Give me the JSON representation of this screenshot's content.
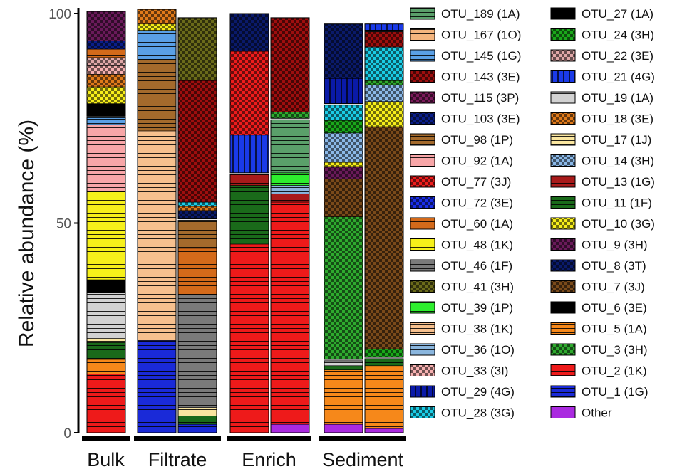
{
  "chart_data": {
    "type": "bar",
    "stacked": true,
    "ylabel": "Relative abundance (%)",
    "ylim": [
      0,
      100
    ],
    "yticks": [
      "0",
      "50",
      "100"
    ],
    "groups": [
      {
        "label": "Bulk",
        "bars": 1
      },
      {
        "label": "Filtrate",
        "bars": 2
      },
      {
        "label": "Enrich",
        "bars": 2
      },
      {
        "label": "Sediment",
        "bars": 2
      }
    ],
    "legend": [
      {
        "name": "OTU_189 (1A)",
        "color": "#5aa06a",
        "pattern": "stripe"
      },
      {
        "name": "OTU_167 (1O)",
        "color": "#f4b57e",
        "pattern": "stripe"
      },
      {
        "name": "OTU_145 (1G)",
        "color": "#5aa0e6",
        "pattern": "stripe"
      },
      {
        "name": "OTU_143 (3E)",
        "color": "#9e0e0e",
        "pattern": "check"
      },
      {
        "name": "OTU_115 (3P)",
        "color": "#7a1a5a",
        "pattern": "check"
      },
      {
        "name": "OTU_103 (3E)",
        "color": "#0a1e8a",
        "pattern": "check"
      },
      {
        "name": "OTU_98 (1P)",
        "color": "#a46a2c",
        "pattern": "stripe"
      },
      {
        "name": "OTU_92 (1A)",
        "color": "#f8a6a8",
        "pattern": "stripe"
      },
      {
        "name": "OTU_77 (3J)",
        "color": "#ee1c1c",
        "pattern": "check"
      },
      {
        "name": "OTU_72 (3E)",
        "color": "#1a2ee8",
        "pattern": "check"
      },
      {
        "name": "OTU_60 (1A)",
        "color": "#d46a1a",
        "pattern": "stripe"
      },
      {
        "name": "OTU_48 (1K)",
        "color": "#f6f01a",
        "pattern": "stripe"
      },
      {
        "name": "OTU_46 (1F)",
        "color": "#7a7a7a",
        "pattern": "stripe"
      },
      {
        "name": "OTU_41 (3H)",
        "color": "#6a6a1a",
        "pattern": "check"
      },
      {
        "name": "OTU_39 (1P)",
        "color": "#2eee2e",
        "pattern": "stripe"
      },
      {
        "name": "OTU_38 (1K)",
        "color": "#f6c08e",
        "pattern": "stripe"
      },
      {
        "name": "OTU_36 (1O)",
        "color": "#8ab6de",
        "pattern": "stripe"
      },
      {
        "name": "OTU_33 (3I)",
        "color": "#f6b0b0",
        "pattern": "check"
      },
      {
        "name": "OTU_29 (4G)",
        "color": "#0a1aa8",
        "pattern": "vstripe"
      },
      {
        "name": "OTU_28 (3G)",
        "color": "#1acce6",
        "pattern": "check"
      },
      {
        "name": "OTU_27 (1A)",
        "color": "#000000",
        "pattern": "solid"
      },
      {
        "name": "OTU_24 (3H)",
        "color": "#1aa81a",
        "pattern": "check"
      },
      {
        "name": "OTU_22 (3E)",
        "color": "#e0a8a8",
        "pattern": "check"
      },
      {
        "name": "OTU_21 (4G)",
        "color": "#1a3ae8",
        "pattern": "vstripe"
      },
      {
        "name": "OTU_19 (1A)",
        "color": "#d2d2d2",
        "pattern": "stripe"
      },
      {
        "name": "OTU_18 (3E)",
        "color": "#e07a1a",
        "pattern": "check"
      },
      {
        "name": "OTU_17 (1J)",
        "color": "#fae6a0",
        "pattern": "stripe"
      },
      {
        "name": "OTU_14 (3H)",
        "color": "#8ab8e8",
        "pattern": "check"
      },
      {
        "name": "OTU_13 (1G)",
        "color": "#a81a1a",
        "pattern": "stripe"
      },
      {
        "name": "OTU_11 (1F)",
        "color": "#1a6a1a",
        "pattern": "stripe"
      },
      {
        "name": "OTU_10 (3G)",
        "color": "#f6ee1a",
        "pattern": "check"
      },
      {
        "name": "OTU_9 (3H)",
        "color": "#6a1a5a",
        "pattern": "check"
      },
      {
        "name": "OTU_8 (3T)",
        "color": "#0a1a6a",
        "pattern": "check"
      },
      {
        "name": "OTU_7 (3J)",
        "color": "#7a4a1a",
        "pattern": "check"
      },
      {
        "name": "OTU_6 (3E)",
        "color": "#000000",
        "pattern": "solid"
      },
      {
        "name": "OTU_5 (1A)",
        "color": "#f6881a",
        "pattern": "stripe"
      },
      {
        "name": "OTU_3 (3H)",
        "color": "#2eaa2e",
        "pattern": "check"
      },
      {
        "name": "OTU_2 (1K)",
        "color": "#ee1a1a",
        "pattern": "stripe"
      },
      {
        "name": "OTU_1 (1G)",
        "color": "#1a2ad8",
        "pattern": "stripe"
      },
      {
        "name": "Other",
        "color": "#aa2ae0",
        "pattern": "solid"
      }
    ],
    "bars": [
      {
        "group": "Bulk",
        "blocks": [
          {
            "segments": [
              [
                "OTU_2 (1K)",
                14
              ],
              [
                "OTU_5 (1A)",
                3.5
              ],
              [
                "OTU_11 (1F)",
                4
              ],
              [
                "OTU_17 (1J)",
                1
              ],
              [
                "OTU_19 (1A)",
                11
              ],
              [
                "OTU_6 (3E)",
                3
              ],
              [
                "OTU_48 (1K)",
                21
              ],
              [
                "OTU_92 (1A)",
                16
              ],
              [
                "OTU_145 (1G)",
                2
              ]
            ]
          },
          {
            "segments": [
              [
                "OTU_27 (1A)",
                3
              ],
              [
                "OTU_10 (3G)",
                4
              ],
              [
                "OTU_18 (3E)",
                3
              ],
              [
                "OTU_33 (3I)",
                2
              ],
              [
                "OTU_22 (3E)",
                2
              ],
              [
                "OTU_60 (1A)",
                2
              ],
              [
                "OTU_103 (3E)",
                2
              ],
              [
                "OTU_9 (3H)",
                7
              ]
            ]
          }
        ]
      },
      {
        "group": "Filtrate",
        "blocks": [
          {
            "segments": [
              [
                "OTU_1 (1G)",
                22
              ],
              [
                "OTU_38 (1K)",
                50
              ],
              [
                "OTU_98 (1P)",
                17
              ],
              [
                "OTU_145 (1G)",
                7
              ],
              [
                "OTU_10 (3G)",
                1.5
              ],
              [
                "OTU_18 (3E)",
                3.5
              ]
            ]
          }
        ]
      },
      {
        "group": "Filtrate",
        "blocks": [
          {
            "segments": [
              [
                "OTU_1 (1G)",
                2
              ],
              [
                "OTU_11 (1F)",
                2
              ],
              [
                "OTU_17 (1J)",
                2
              ],
              [
                "OTU_46 (1F)",
                27
              ],
              [
                "OTU_60 (1A)",
                11
              ],
              [
                "OTU_98 (1P)",
                7
              ]
            ]
          },
          {
            "segments": [
              [
                "OTU_8 (3T)",
                2
              ],
              [
                "OTU_18 (3E)",
                1
              ],
              [
                "OTU_28 (3G)",
                1
              ],
              [
                "OTU_143 (3E)",
                29
              ],
              [
                "OTU_41 (3H)",
                15
              ]
            ]
          }
        ]
      },
      {
        "group": "Enrich",
        "blocks": [
          {
            "segments": [
              [
                "OTU_2 (1K)",
                45
              ],
              [
                "OTU_11 (1F)",
                14
              ],
              [
                "OTU_13 (1G)",
                3
              ]
            ]
          },
          {
            "segments": [
              [
                "OTU_21 (4G)",
                9
              ],
              [
                "OTU_77 (3J)",
                20
              ],
              [
                "OTU_8 (3T)",
                9
              ]
            ]
          }
        ]
      },
      {
        "group": "Enrich",
        "blocks": [
          {
            "segments": [
              [
                "Other",
                2
              ],
              [
                "OTU_2 (1K)",
                53
              ],
              [
                "OTU_13 (1G)",
                2
              ],
              [
                "OTU_36 (1O)",
                2
              ],
              [
                "OTU_39 (1P)",
                3
              ],
              [
                "OTU_189 (1A)",
                13
              ]
            ]
          },
          {
            "segments": [
              [
                "OTU_3 (3H)",
                1.5
              ],
              [
                "OTU_143 (3E)",
                22.5
              ]
            ]
          }
        ]
      },
      {
        "group": "Sediment",
        "blocks": [
          {
            "segments": [
              [
                "Other",
                2
              ],
              [
                "OTU_5 (1A)",
                13
              ],
              [
                "OTU_11 (1F)",
                1
              ],
              [
                "OTU_19 (1A)",
                1.5
              ]
            ]
          },
          {
            "segments": [
              [
                "OTU_3 (3H)",
                34
              ],
              [
                "OTU_7 (3J)",
                9
              ],
              [
                "OTU_9 (3H)",
                3
              ],
              [
                "OTU_10 (3G)",
                1
              ],
              [
                "OTU_14 (3H)",
                7
              ],
              [
                "OTU_24 (3H)",
                3
              ],
              [
                "OTU_28 (3G)",
                4
              ]
            ]
          },
          {
            "segments": [
              [
                "OTU_29 (4G)",
                6
              ],
              [
                "OTU_8 (3T)",
                13
              ]
            ]
          }
        ]
      },
      {
        "group": "Sediment",
        "blocks": [
          {
            "segments": [
              [
                "Other",
                1
              ],
              [
                "OTU_5 (1A)",
                15
              ],
              [
                "OTU_11 (1F)",
                2
              ]
            ]
          },
          {
            "segments": [
              [
                "OTU_24 (3H)",
                2
              ],
              [
                "OTU_7 (3J)",
                53
              ],
              [
                "OTU_10 (3G)",
                6
              ],
              [
                "OTU_14 (3H)",
                4
              ],
              [
                "OTU_3 (3H)",
                1
              ],
              [
                "OTU_28 (3G)",
                8
              ],
              [
                "OTU_143 (3E)",
                4
              ]
            ]
          },
          {
            "segments": [
              [
                "OTU_21 (4G)",
                1.5
              ]
            ]
          }
        ]
      }
    ]
  }
}
